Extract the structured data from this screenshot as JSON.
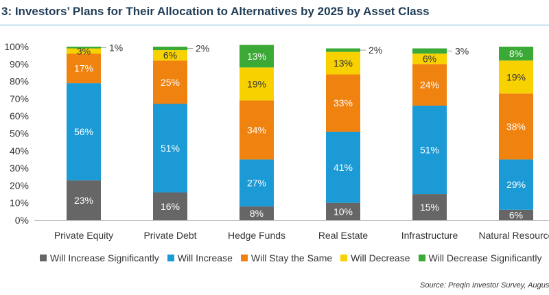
{
  "header": {
    "title": "3: Investors’ Plans for Their Allocation to Alternatives by 2025 by Asset Class"
  },
  "source": "Source: Preqin Investor Survey, Augus",
  "colors": {
    "will_increase_significantly": "#666666",
    "will_increase": "#1b9ad6",
    "will_stay_the_same": "#f0820f",
    "will_decrease": "#f8d200",
    "will_decrease_significantly": "#3aa935"
  },
  "chart_data": {
    "type": "bar",
    "stacked": true,
    "categories": [
      "Private Equity",
      "Private Debt",
      "Hedge Funds",
      "Real Estate",
      "Infrastructure",
      "Natural Resource"
    ],
    "series": [
      {
        "name": "Will Increase Significantly",
        "values": [
          23,
          16,
          8,
          10,
          15,
          6
        ],
        "color": "#666666"
      },
      {
        "name": "Will Increase",
        "values": [
          56,
          51,
          27,
          41,
          51,
          29
        ],
        "color": "#1b9ad6"
      },
      {
        "name": "Will Stay the Same",
        "values": [
          17,
          25,
          34,
          33,
          24,
          38
        ],
        "color": "#f0820f"
      },
      {
        "name": "Will Decrease",
        "values": [
          3,
          6,
          19,
          13,
          6,
          19
        ],
        "color": "#f8d200"
      },
      {
        "name": "Will Decrease Significantly",
        "values": [
          1,
          2,
          13,
          2,
          3,
          8
        ],
        "color": "#3aa935"
      }
    ],
    "labels": [
      [
        "23%",
        "56%",
        "17%",
        "3%",
        "1%"
      ],
      [
        "16%",
        "51%",
        "25%",
        "6%",
        "2%"
      ],
      [
        "8%",
        "27%",
        "34%",
        "19%",
        "13%"
      ],
      [
        "10%",
        "41%",
        "33%",
        "13%",
        "2%"
      ],
      [
        "15%",
        "51%",
        "24%",
        "6%",
        "3%"
      ],
      [
        "6%",
        "29%",
        "38%",
        "19%",
        "8%"
      ]
    ],
    "outside_labels": [
      4,
      4,
      null,
      4,
      4,
      null
    ],
    "yticks": [
      "0%",
      "10%",
      "20%",
      "30%",
      "40%",
      "50%",
      "60%",
      "70%",
      "80%",
      "90%",
      "100%"
    ],
    "ylim": [
      0,
      100
    ],
    "legend_position": "bottom",
    "grid": false
  }
}
